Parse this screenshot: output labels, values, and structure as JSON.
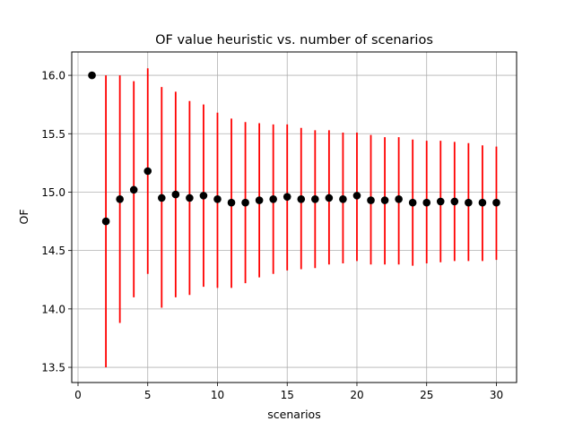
{
  "chart_data": {
    "type": "scatter",
    "title": "OF value heuristic vs. number of scenarios",
    "xlabel": "scenarios",
    "ylabel": "OF",
    "xlim": [
      -0.45,
      31.45
    ],
    "ylim": [
      13.37,
      16.2
    ],
    "x_ticks": [
      0,
      5,
      10,
      15,
      20,
      25,
      30
    ],
    "y_ticks": [
      13.5,
      14.0,
      14.5,
      15.0,
      15.5,
      16.0
    ],
    "x_tick_labels": [
      "0",
      "5",
      "10",
      "15",
      "20",
      "25",
      "30"
    ],
    "y_tick_labels": [
      "13.5",
      "14.0",
      "14.5",
      "15.0",
      "15.5",
      "16.0"
    ],
    "grid": true,
    "legend": "none",
    "point_color": "#000000",
    "errorbar_color": "#ff0000",
    "series": [
      {
        "x": [
          1,
          2,
          3,
          4,
          5,
          6,
          7,
          8,
          9,
          10,
          11,
          12,
          13,
          14,
          15,
          16,
          17,
          18,
          19,
          20,
          21,
          22,
          23,
          24,
          25,
          26,
          27,
          28,
          29,
          30
        ],
        "y": [
          16.0,
          14.75,
          14.94,
          15.02,
          15.18,
          14.95,
          14.98,
          14.95,
          14.97,
          14.94,
          14.91,
          14.91,
          14.93,
          14.94,
          14.96,
          14.94,
          14.94,
          14.95,
          14.94,
          14.97,
          14.93,
          14.93,
          14.94,
          14.91,
          14.91,
          14.92,
          14.92,
          14.91,
          14.91,
          14.91
        ],
        "y_low": [
          null,
          13.5,
          13.88,
          14.1,
          14.3,
          14.01,
          14.1,
          14.12,
          14.19,
          14.18,
          14.18,
          14.22,
          14.27,
          14.3,
          14.33,
          14.34,
          14.35,
          14.38,
          14.39,
          14.41,
          14.38,
          14.38,
          14.38,
          14.37,
          14.39,
          14.4,
          14.41,
          14.41,
          14.41,
          14.42
        ],
        "y_high": [
          null,
          16.0,
          16.0,
          15.95,
          16.06,
          15.9,
          15.86,
          15.78,
          15.75,
          15.68,
          15.63,
          15.6,
          15.59,
          15.58,
          15.58,
          15.55,
          15.53,
          15.53,
          15.51,
          15.51,
          15.49,
          15.47,
          15.47,
          15.45,
          15.44,
          15.44,
          15.43,
          15.42,
          15.4,
          15.39
        ]
      }
    ]
  }
}
